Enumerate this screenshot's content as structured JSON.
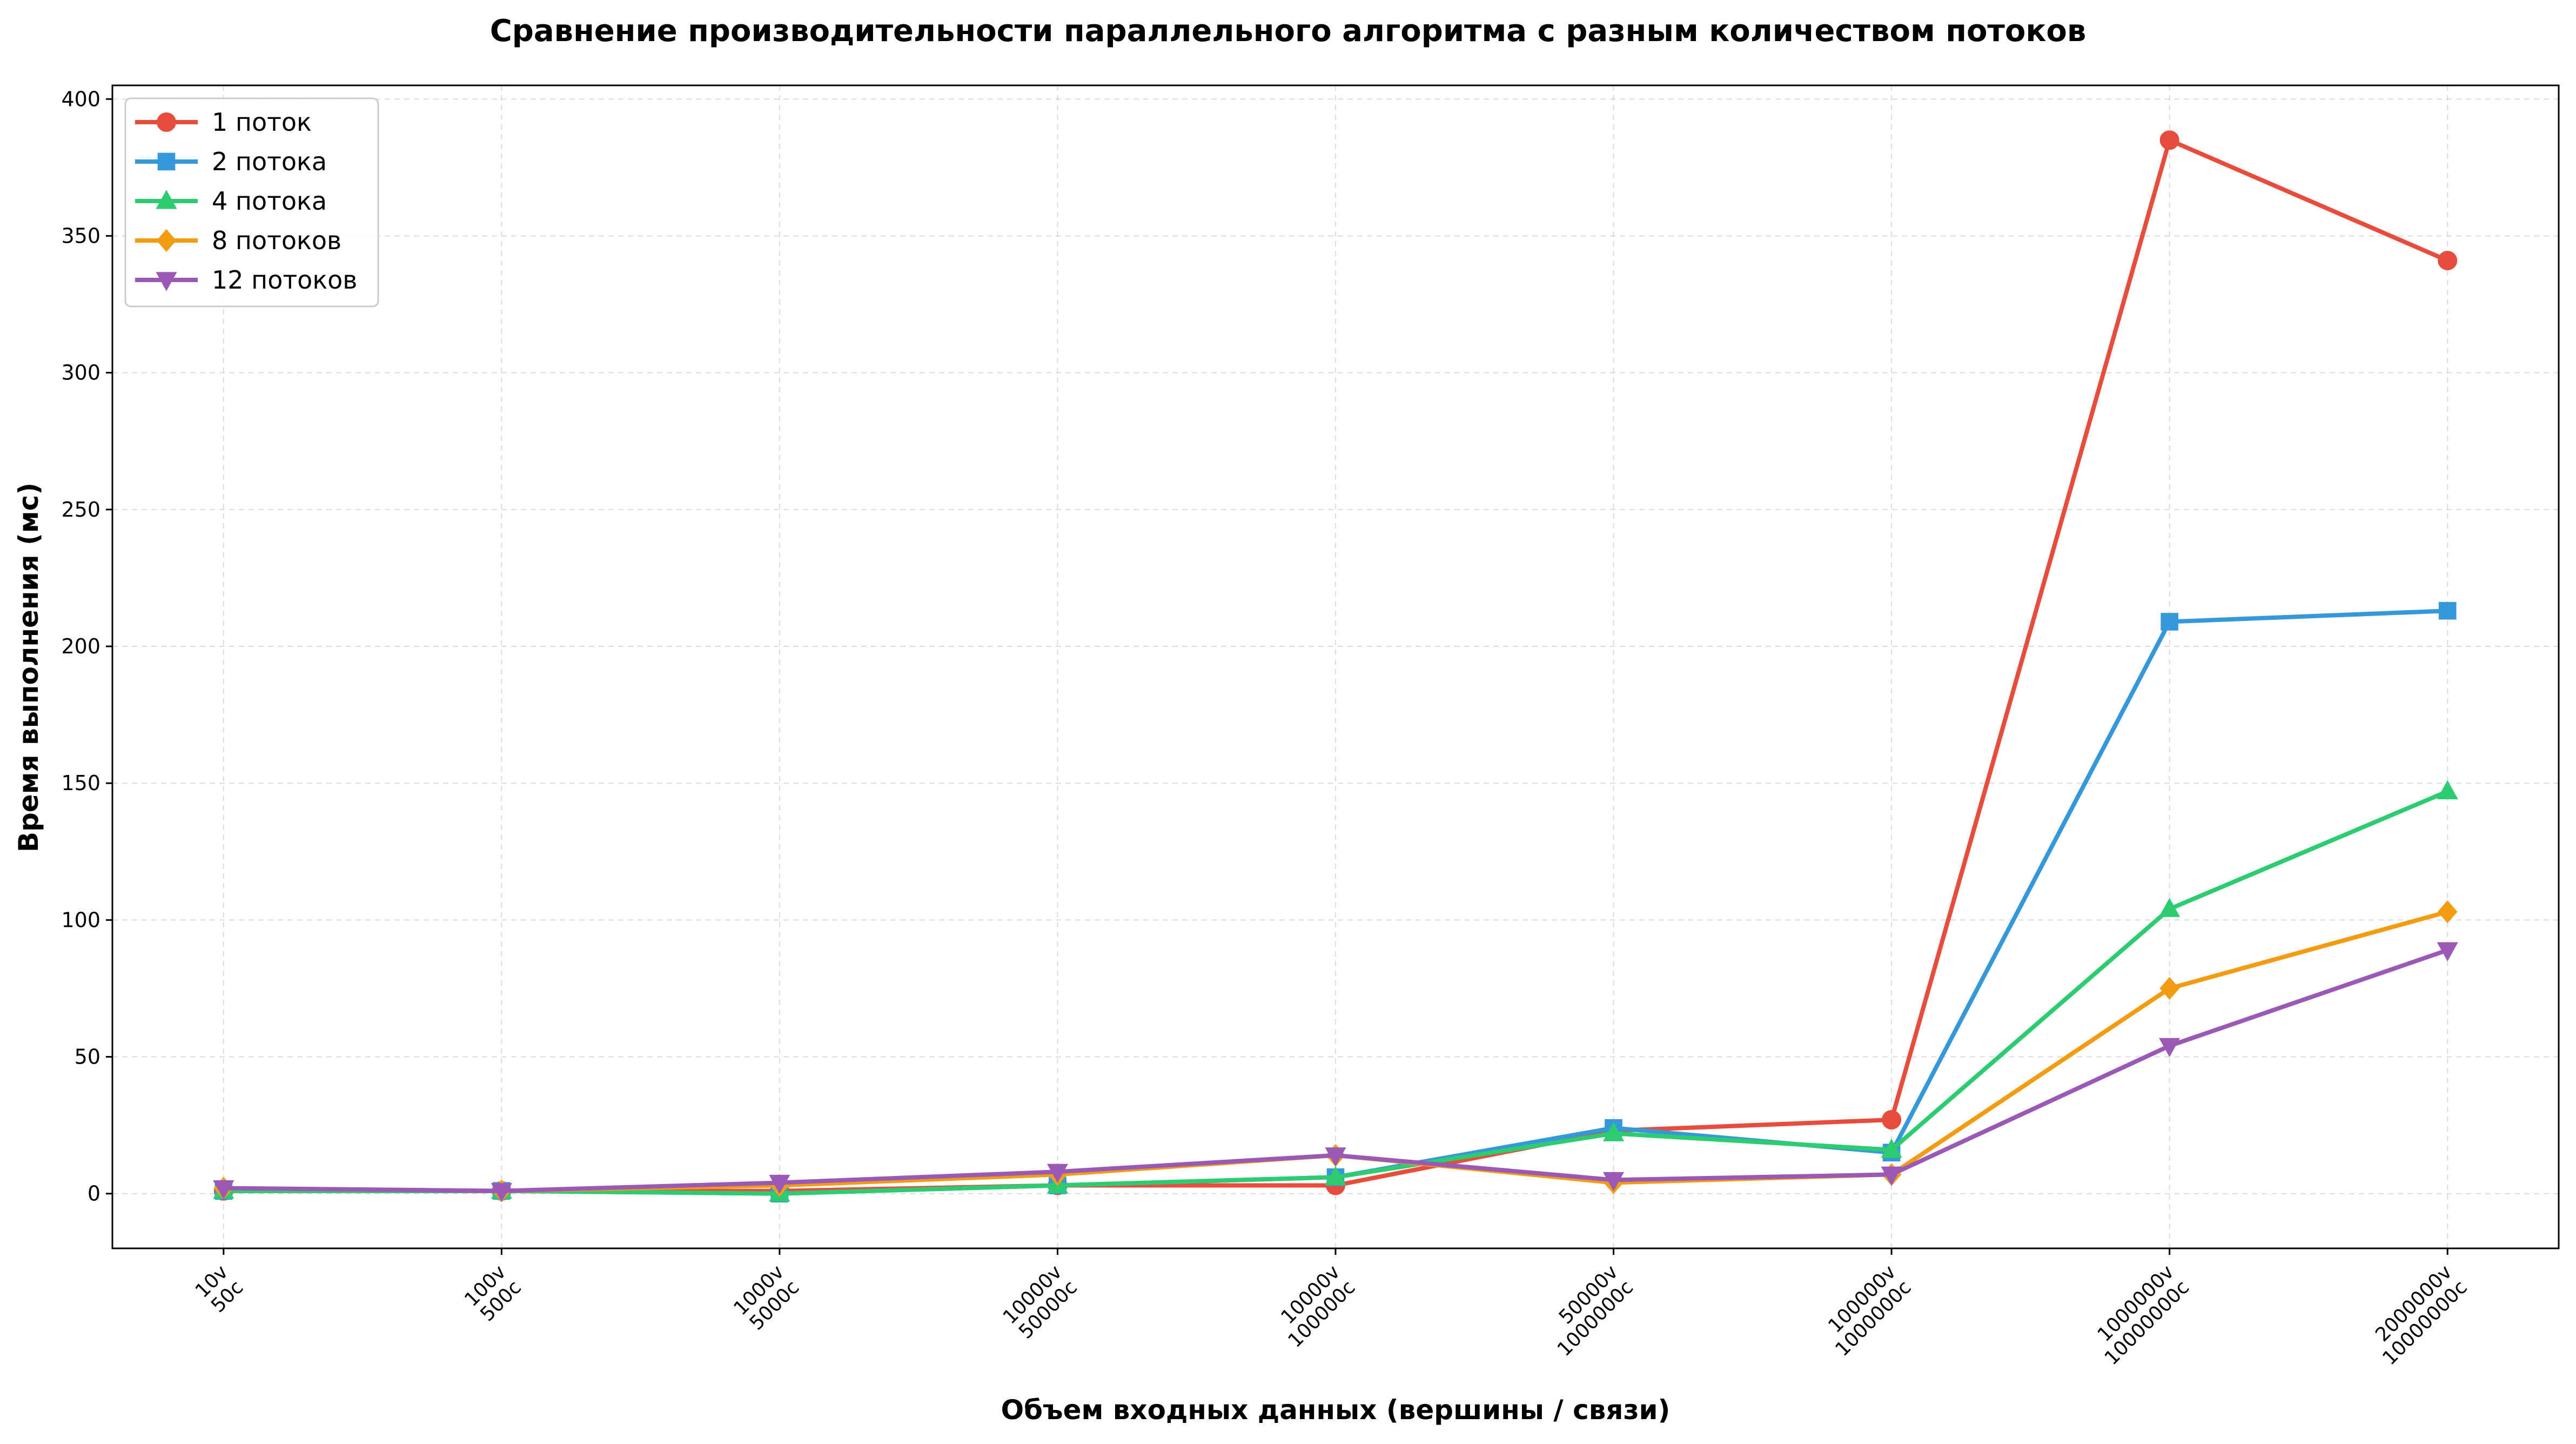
{
  "chart_data": {
    "type": "line",
    "title": "Сравнение производительности параллельного алгоритма с разным количеством потоков",
    "xlabel": "Объем входных данных (вершины / связи)",
    "ylabel": "Время выполнения (мс)",
    "categories": [
      [
        "10v",
        "50c"
      ],
      [
        "100v",
        "500c"
      ],
      [
        "1000v",
        "5000c"
      ],
      [
        "10000v",
        "50000c"
      ],
      [
        "10000v",
        "100000c"
      ],
      [
        "50000v",
        "1000000c"
      ],
      [
        "100000v",
        "1000000c"
      ],
      [
        "1000000v",
        "10000000c"
      ],
      [
        "2000000v",
        "10000000c"
      ]
    ],
    "ylim": [
      -20,
      405
    ],
    "yticks": [
      0,
      50,
      100,
      150,
      200,
      250,
      300,
      350,
      400
    ],
    "grid": true,
    "legend_position": "top-left",
    "series": [
      {
        "name": "1 поток",
        "color": "#e74c3c",
        "marker": "circle",
        "values": [
          1,
          1,
          1,
          3,
          3,
          23,
          27,
          385,
          341
        ]
      },
      {
        "name": "2 потока",
        "color": "#3498db",
        "marker": "square",
        "values": [
          1,
          1,
          0,
          3,
          6,
          24,
          15,
          209,
          213
        ]
      },
      {
        "name": "4 потока",
        "color": "#2ecc71",
        "marker": "triangle-up",
        "values": [
          1,
          1,
          0,
          3,
          6,
          22,
          16,
          104,
          147
        ]
      },
      {
        "name": "8 потоков",
        "color": "#f39c12",
        "marker": "diamond",
        "values": [
          2,
          1,
          3,
          7,
          14,
          4,
          7,
          75,
          103
        ]
      },
      {
        "name": "12 потоков",
        "color": "#9b59b6",
        "marker": "triangle-down",
        "values": [
          2,
          1,
          4,
          8,
          14,
          5,
          7,
          54,
          89
        ]
      }
    ]
  }
}
